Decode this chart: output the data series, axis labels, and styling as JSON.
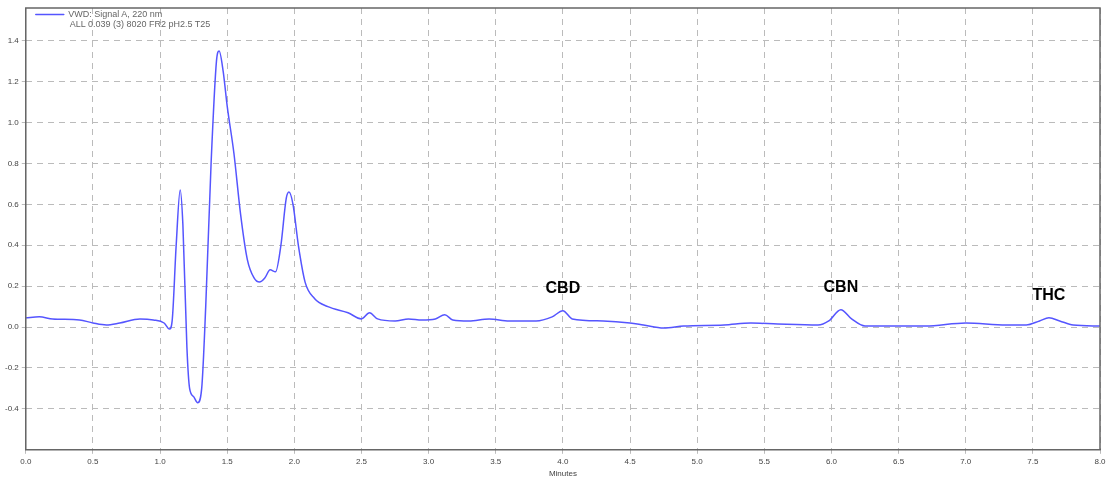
{
  "chart_data": {
    "type": "line",
    "xlabel": "Minutes",
    "x": [
      0,
      0.1,
      0.2,
      0.4,
      0.5,
      0.6,
      0.7,
      0.85,
      0.95,
      1.03,
      1.07,
      1.09,
      1.12,
      1.15,
      1.17,
      1.2,
      1.22,
      1.25,
      1.28,
      1.31,
      1.34,
      1.38,
      1.42,
      1.44,
      1.47,
      1.5,
      1.55,
      1.6,
      1.65,
      1.7,
      1.74,
      1.78,
      1.82,
      1.86,
      1.9,
      1.94,
      1.96,
      1.99,
      2.03,
      2.08,
      2.15,
      2.25,
      2.4,
      2.5,
      2.56,
      2.62,
      2.75,
      2.85,
      2.95,
      3.05,
      3.12,
      3.18,
      3.3,
      3.45,
      3.6,
      3.8,
      3.92,
      4.0,
      4.07,
      4.3,
      4.5,
      4.6,
      4.75,
      4.9,
      5.2,
      5.4,
      5.6,
      5.9,
      5.98,
      6.07,
      6.15,
      6.25,
      6.5,
      6.7,
      7.0,
      7.3,
      7.45,
      7.55,
      7.62,
      7.7,
      7.8,
      8.0
    ],
    "series": [
      {
        "name": "VWD: Signal A, 220 nm",
        "color": "#5555ff",
        "values": [
          0.045,
          0.05,
          0.04,
          0.035,
          0.02,
          0.01,
          0.02,
          0.04,
          0.035,
          0.02,
          -0.01,
          0.03,
          0.4,
          0.67,
          0.5,
          -0.1,
          -0.3,
          -0.34,
          -0.37,
          -0.3,
          0.1,
          0.8,
          1.3,
          1.35,
          1.25,
          1.08,
          0.85,
          0.55,
          0.33,
          0.24,
          0.22,
          0.24,
          0.28,
          0.27,
          0.4,
          0.63,
          0.66,
          0.6,
          0.4,
          0.22,
          0.14,
          0.1,
          0.07,
          0.04,
          0.07,
          0.04,
          0.03,
          0.04,
          0.035,
          0.04,
          0.06,
          0.035,
          0.03,
          0.04,
          0.03,
          0.03,
          0.05,
          0.08,
          0.04,
          0.03,
          0.02,
          0.01,
          -0.005,
          0.005,
          0.01,
          0.02,
          0.015,
          0.01,
          0.03,
          0.085,
          0.04,
          0.005,
          0.005,
          0.005,
          0.02,
          0.01,
          0.01,
          0.03,
          0.045,
          0.03,
          0.01,
          0.005
        ]
      }
    ],
    "xlim": [
      0,
      8
    ],
    "xticks": [
      {
        "value": 0,
        "label": "0.0"
      },
      0.5,
      {
        "value": 1,
        "label": "1.0"
      },
      1.5,
      {
        "value": 2,
        "label": "2.0"
      },
      2.5,
      {
        "value": 3,
        "label": "3.0"
      },
      3.5,
      {
        "value": 4,
        "label": "4.0"
      },
      4.5,
      {
        "value": 5,
        "label": "5.0"
      },
      5.5,
      {
        "value": 6,
        "label": "6.0"
      },
      6.5,
      {
        "value": 7,
        "label": "7.0"
      },
      7.5,
      {
        "value": 8,
        "label": "8.0"
      }
    ],
    "ylim": [
      -0.6,
      1.56
    ],
    "yticks": [
      -0.4,
      -0.2,
      {
        "value": 0,
        "label": "0.0"
      },
      0.2,
      0.4,
      0.6,
      0.8,
      {
        "value": 1,
        "label": "1.0"
      },
      1.2,
      1.4
    ],
    "grid": true,
    "legend": "top left",
    "marker": "none",
    "line_style": "solid",
    "annotations": [
      "ALL 0.039 (3) 8020 FR2 pH2.5 T25",
      {
        "text": "CBD",
        "x": 4.0,
        "y": 0.08
      },
      {
        "text": "CBN",
        "x": 6.07,
        "y": 0.085
      },
      {
        "text": "THC",
        "x": 7.62,
        "y": 0.045
      }
    ]
  }
}
